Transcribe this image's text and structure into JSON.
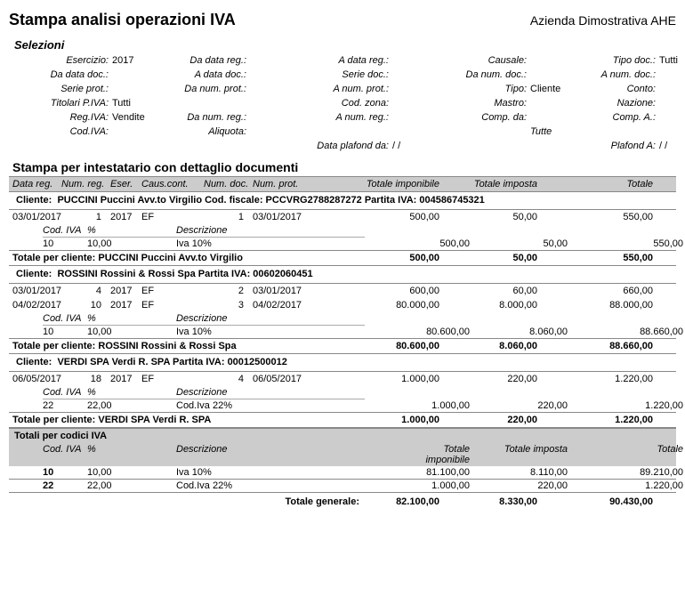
{
  "report": {
    "title": "Stampa analisi operazioni IVA",
    "company": "Azienda Dimostrativa AHE",
    "section_selezioni": "Selezioni",
    "section_dettaglio": "Stampa per intestatario con dettaglio documenti"
  },
  "filters": {
    "r1": {
      "esercizio_l": "Esercizio:",
      "esercizio_v": "2017",
      "dadatareg_l": "Da data reg.:",
      "dadatareg_v": "",
      "adatareg_l": "A data reg.:",
      "adatareg_v": "",
      "causale_l": "Causale:",
      "causale_v": "",
      "tipodoc_l": "Tipo doc.:",
      "tipodoc_v": "Tutti"
    },
    "r2": {
      "dadatadoc_l": "Da data doc.:",
      "dadatadoc_v": "",
      "adatadoc_l": "A data doc.:",
      "adatadoc_v": "",
      "seriedoc_l": "Serie doc.:",
      "seriedoc_v": "",
      "danumdoc_l": "Da num. doc.:",
      "danumdoc_v": "",
      "anumdoc_l": "A num. doc.:",
      "anumdoc_v": ""
    },
    "r3": {
      "serieprot_l": "Serie prot.:",
      "serieprot_v": "",
      "danumprot_l": "Da num. prot.:",
      "danumprot_v": "",
      "anumprot_l": "A num. prot.:",
      "anumprot_v": "",
      "tipo_l": "Tipo:",
      "tipo_v": "Cliente",
      "conto_l": "Conto:",
      "conto_v": ""
    },
    "r4": {
      "titpiva_l": "Titolari P.IVA:",
      "titpiva_v": "Tutti",
      "codzona_l": "Cod. zona:",
      "codzona_v": "",
      "mastro_l": "Mastro:",
      "mastro_v": "",
      "nazione_l": "Nazione:",
      "nazione_v": ""
    },
    "r5": {
      "regiva_l": "Reg.IVA:",
      "regiva_v": "Vendite",
      "danumreg_l": "Da num. reg.:",
      "danumreg_v": "",
      "anumreg_l": "A num. reg.:",
      "anumreg_v": "",
      "compda_l": "Comp. da:",
      "compda_v": "",
      "compa_l": "Comp. A.:",
      "compa_v": ""
    },
    "r6": {
      "codiva_l": "Cod.IVA:",
      "codiva_v": "",
      "aliquota_l": "Aliquota:",
      "aliquota_v": "",
      "tutte": "Tutte"
    },
    "r7": {
      "plafondda_l": "Data plafond da:",
      "plafondda_v": "/  /",
      "plafonda_l": "Plafond A:",
      "plafonda_v": "/  /"
    }
  },
  "columns": {
    "c1": "Data reg.",
    "c2": "Num. reg.",
    "c3": "Eser.",
    "c4": "Caus.cont.",
    "c5": "Num. doc.",
    "c6": "Num. prot.",
    "c7": "Totale imponibile",
    "c8": "Totale imposta",
    "c9": "Totale"
  },
  "sub_columns": {
    "c1": "Cod. IVA",
    "c2": "%",
    "c3": "Descrizione"
  },
  "cliente_label": "Cliente:",
  "clients": [
    {
      "heading": "PUCCINI Puccini Avv.to Virgilio Cod. fiscale: PCCVRG2788287272 Partita IVA: 004586745321",
      "docs": [
        {
          "data": "03/01/2017",
          "numreg": "1",
          "eser": "2017",
          "caus": "EF",
          "numdoc": "1",
          "numprot": "03/01/2017",
          "imp": "500,00",
          "tax": "50,00",
          "tot": "550,00",
          "sub": [
            {
              "cod": "10",
              "perc": "10,00",
              "desc": "Iva 10%",
              "imp": "500,00",
              "tax": "50,00",
              "tot": "550,00"
            }
          ]
        }
      ],
      "total_label": "Totale per cliente: PUCCINI Puccini Avv.to Virgilio",
      "timp": "500,00",
      "ttax": "50,00",
      "ttot": "550,00"
    },
    {
      "heading": "ROSSINI Rossini & Rossi Spa  Partita IVA: 00602060451",
      "docs": [
        {
          "data": "03/01/2017",
          "numreg": "4",
          "eser": "2017",
          "caus": "EF",
          "numdoc": "2",
          "numprot": "03/01/2017",
          "imp": "600,00",
          "tax": "60,00",
          "tot": "660,00"
        },
        {
          "data": "04/02/2017",
          "numreg": "10",
          "eser": "2017",
          "caus": "EF",
          "numdoc": "3",
          "numprot": "04/02/2017",
          "imp": "80.000,00",
          "tax": "8.000,00",
          "tot": "88.000,00",
          "sub": [
            {
              "cod": "10",
              "perc": "10,00",
              "desc": "Iva 10%",
              "imp": "80.600,00",
              "tax": "8.060,00",
              "tot": "88.660,00"
            }
          ]
        }
      ],
      "total_label": "Totale per cliente: ROSSINI Rossini & Rossi Spa",
      "timp": "80.600,00",
      "ttax": "8.060,00",
      "ttot": "88.660,00"
    },
    {
      "heading": "VERDI SPA Verdi R. SPA  Partita IVA: 00012500012",
      "docs": [
        {
          "data": "06/05/2017",
          "numreg": "18",
          "eser": "2017",
          "caus": "EF",
          "numdoc": "4",
          "numprot": "06/05/2017",
          "imp": "1.000,00",
          "tax": "220,00",
          "tot": "1.220,00",
          "sub": [
            {
              "cod": "22",
              "perc": "22,00",
              "desc": "Cod.Iva 22%",
              "imp": "1.000,00",
              "tax": "220,00",
              "tot": "1.220,00"
            }
          ]
        }
      ],
      "total_label": "Totale per cliente: VERDI SPA Verdi R. SPA",
      "timp": "1.000,00",
      "ttax": "220,00",
      "ttot": "1.220,00"
    }
  ],
  "totcod": {
    "title": "Totali per codici IVA",
    "hdr": {
      "c1": "Cod. IVA",
      "c2": "%",
      "c3": "Descrizione",
      "c4": "Totale imponibile",
      "c5": "Totale imposta",
      "c6": "Totale"
    },
    "rows": [
      {
        "cod": "10",
        "perc": "10,00",
        "desc": "Iva 10%",
        "imp": "81.100,00",
        "tax": "8.110,00",
        "tot": "89.210,00"
      },
      {
        "cod": "22",
        "perc": "22,00",
        "desc": "Cod.Iva 22%",
        "imp": "1.000,00",
        "tax": "220,00",
        "tot": "1.220,00"
      }
    ]
  },
  "grand": {
    "label": "Totale generale:",
    "imp": "82.100,00",
    "tax": "8.330,00",
    "tot": "90.430,00"
  }
}
